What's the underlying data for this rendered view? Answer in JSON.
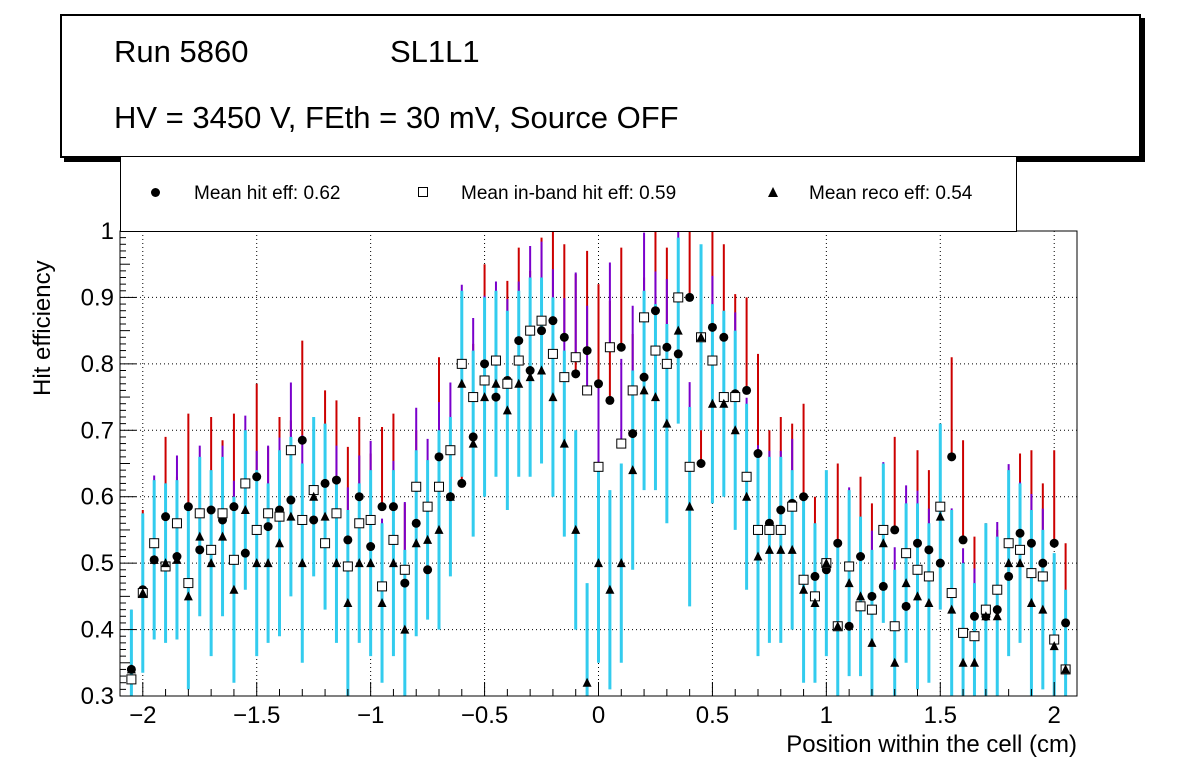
{
  "header": {
    "run": "Run 5860",
    "layer": "SL1L1",
    "conditions": "HV = 3450 V, FEth = 30 mV, Source OFF"
  },
  "legend": {
    "hit": "Mean hit  eff: 0.62",
    "inband": "Mean in-band hit eff: 0.59",
    "reco": "Mean reco eff: 0.54"
  },
  "colors": {
    "hit_err": "#cc0000",
    "inband_err_upper": "#7a00cc",
    "reco_err": "#33ccee",
    "marker": "#000000"
  },
  "chart_data": {
    "type": "scatter",
    "xlabel": "Position within the cell (cm)",
    "ylabel": "Hit efficiency",
    "xlim": [
      -2.1,
      2.1
    ],
    "ylim": [
      0.3,
      1.0
    ],
    "grid": true,
    "x_ticks": [
      -2,
      -1.5,
      -1,
      -0.5,
      0,
      0.5,
      1,
      1.5,
      2
    ],
    "x_tick_labels": [
      "−2",
      "−1.5",
      "−1",
      "−0.5",
      "0",
      "0.5",
      "1",
      "1.5",
      "2"
    ],
    "y_ticks": [
      0.3,
      0.4,
      0.5,
      0.6,
      0.7,
      0.8,
      0.9,
      1.0
    ],
    "y_tick_labels": [
      "0.3",
      "0.4",
      "0.5",
      "0.6",
      "0.7",
      "0.8",
      "0.9",
      "1"
    ],
    "series": [
      {
        "name": "Mean hit eff",
        "marker": "circle",
        "x": [
          -2.05,
          -2.0,
          -1.95,
          -1.9,
          -1.85,
          -1.8,
          -1.75,
          -1.7,
          -1.65,
          -1.6,
          -1.55,
          -1.5,
          -1.45,
          -1.4,
          -1.35,
          -1.3,
          -1.25,
          -1.2,
          -1.15,
          -1.1,
          -1.05,
          -1.0,
          -0.95,
          -0.9,
          -0.85,
          -0.8,
          -0.75,
          -0.7,
          -0.65,
          -0.6,
          -0.55,
          -0.5,
          -0.45,
          -0.4,
          -0.35,
          -0.3,
          -0.25,
          -0.2,
          -0.15,
          -0.1,
          -0.05,
          0.0,
          0.05,
          0.1,
          0.15,
          0.2,
          0.25,
          0.3,
          0.35,
          0.4,
          0.45,
          0.5,
          0.55,
          0.6,
          0.65,
          0.7,
          0.75,
          0.8,
          0.85,
          0.9,
          0.95,
          1.0,
          1.05,
          1.1,
          1.15,
          1.2,
          1.25,
          1.3,
          1.35,
          1.4,
          1.45,
          1.5,
          1.55,
          1.6,
          1.65,
          1.7,
          1.75,
          1.8,
          1.85,
          1.9,
          1.95,
          2.0,
          2.05
        ],
        "y": [
          0.34,
          0.46,
          0.505,
          0.57,
          0.51,
          0.585,
          0.52,
          0.58,
          0.565,
          0.585,
          0.515,
          0.63,
          0.555,
          0.58,
          0.595,
          0.685,
          0.565,
          0.62,
          0.625,
          0.535,
          0.6,
          0.525,
          0.585,
          0.585,
          0.47,
          0.56,
          0.49,
          0.66,
          0.6,
          0.62,
          0.69,
          0.8,
          0.75,
          0.775,
          0.835,
          0.79,
          0.85,
          0.865,
          0.84,
          0.785,
          0.82,
          0.77,
          0.745,
          0.825,
          0.695,
          0.78,
          0.88,
          0.825,
          0.815,
          0.9,
          0.65,
          0.855,
          0.84,
          0.755,
          0.76,
          0.665,
          0.56,
          0.58,
          0.59,
          0.6,
          0.48,
          0.49,
          0.53,
          0.405,
          0.51,
          0.45,
          0.465,
          0.55,
          0.435,
          0.53,
          0.52,
          0.5,
          0.66,
          0.535,
          0.42,
          0.42,
          0.43,
          0.48,
          0.545,
          0.53,
          0.5,
          0.53,
          0.41
        ],
        "yerr_up": [
          0.09,
          0.12,
          0.12,
          0.12,
          0.12,
          0.14,
          0.12,
          0.14,
          0.12,
          0.14,
          0.12,
          0.14,
          0.12,
          0.14,
          0.12,
          0.15,
          0.12,
          0.14,
          0.12,
          0.14,
          0.12,
          0.14,
          0.12,
          0.14,
          0.12,
          0.14,
          0.12,
          0.15,
          0.12,
          0.14,
          0.14,
          0.15,
          0.14,
          0.15,
          0.14,
          0.15,
          0.14,
          0.15,
          0.14,
          0.15,
          0.15,
          0.15,
          0.15,
          0.15,
          0.15,
          0.15,
          0.14,
          0.15,
          0.14,
          0.15,
          0.14,
          0.15,
          0.14,
          0.15,
          0.14,
          0.15,
          0.14,
          0.14,
          0.12,
          0.14,
          0.12,
          0.14,
          0.12,
          0.14,
          0.12,
          0.14,
          0.12,
          0.14,
          0.12,
          0.14,
          0.12,
          0.14,
          0.15,
          0.15,
          0.12,
          0.14,
          0.12,
          0.14,
          0.12,
          0.14,
          0.12,
          0.14,
          0.12
        ]
      },
      {
        "name": "Mean in-band hit eff",
        "marker": "open-square",
        "x": [
          -2.05,
          -2.0,
          -1.95,
          -1.9,
          -1.85,
          -1.8,
          -1.75,
          -1.7,
          -1.65,
          -1.6,
          -1.55,
          -1.5,
          -1.45,
          -1.4,
          -1.35,
          -1.3,
          -1.25,
          -1.2,
          -1.15,
          -1.1,
          -1.05,
          -1.0,
          -0.95,
          -0.9,
          -0.85,
          -0.8,
          -0.75,
          -0.7,
          -0.65,
          -0.6,
          -0.55,
          -0.5,
          -0.45,
          -0.4,
          -0.35,
          -0.3,
          -0.25,
          -0.2,
          -0.15,
          -0.1,
          -0.05,
          0.0,
          0.05,
          0.1,
          0.15,
          0.2,
          0.25,
          0.3,
          0.35,
          0.4,
          0.45,
          0.5,
          0.55,
          0.6,
          0.65,
          0.7,
          0.75,
          0.8,
          0.85,
          0.9,
          0.95,
          1.0,
          1.05,
          1.1,
          1.15,
          1.2,
          1.25,
          1.3,
          1.35,
          1.4,
          1.45,
          1.5,
          1.55,
          1.6,
          1.65,
          1.7,
          1.75,
          1.8,
          1.85,
          1.9,
          1.95,
          2.0,
          2.05
        ],
        "y": [
          0.325,
          0.455,
          0.53,
          0.495,
          0.56,
          0.47,
          0.575,
          0.52,
          0.575,
          0.505,
          0.62,
          0.55,
          0.575,
          0.57,
          0.67,
          0.565,
          0.61,
          0.53,
          0.575,
          0.495,
          0.56,
          0.565,
          0.465,
          0.535,
          0.49,
          0.615,
          0.585,
          0.615,
          0.67,
          0.8,
          0.75,
          0.775,
          0.805,
          0.77,
          0.805,
          0.85,
          0.865,
          0.815,
          0.78,
          0.81,
          0.76,
          0.645,
          0.825,
          0.68,
          0.76,
          0.87,
          0.82,
          0.8,
          0.9,
          0.645,
          0.84,
          0.805,
          0.75,
          0.75,
          0.63,
          0.55,
          0.55,
          0.55,
          0.585,
          0.475,
          0.45,
          0.5,
          0.405,
          0.495,
          0.435,
          0.43,
          0.55,
          0.405,
          0.515,
          0.49,
          0.48,
          0.585,
          0.455,
          0.395,
          0.39,
          0.43,
          0.46,
          0.53,
          0.52,
          0.485,
          0.48,
          0.385,
          0.34
        ],
        "yerr_up": [
          0.09,
          0.12,
          0.12,
          0.12,
          0.12,
          0.14,
          0.12,
          0.14,
          0.12,
          0.14,
          0.12,
          0.14,
          0.12,
          0.14,
          0.12,
          0.15,
          0.12,
          0.14,
          0.12,
          0.14,
          0.12,
          0.14,
          0.12,
          0.14,
          0.12,
          0.14,
          0.12,
          0.15,
          0.12,
          0.14,
          0.14,
          0.15,
          0.14,
          0.15,
          0.14,
          0.15,
          0.14,
          0.15,
          0.14,
          0.15,
          0.15,
          0.15,
          0.15,
          0.15,
          0.15,
          0.15,
          0.14,
          0.15,
          0.14,
          0.15,
          0.14,
          0.15,
          0.14,
          0.15,
          0.14,
          0.15,
          0.14,
          0.14,
          0.12,
          0.14,
          0.12,
          0.14,
          0.12,
          0.14,
          0.12,
          0.14,
          0.12,
          0.14,
          0.12,
          0.14,
          0.12,
          0.14,
          0.15,
          0.15,
          0.12,
          0.14,
          0.12,
          0.14,
          0.12,
          0.14,
          0.12,
          0.14,
          0.12
        ]
      },
      {
        "name": "Mean reco eff",
        "marker": "triangle",
        "x": [
          -2.05,
          -2.0,
          -1.95,
          -1.9,
          -1.85,
          -1.8,
          -1.75,
          -1.7,
          -1.65,
          -1.6,
          -1.55,
          -1.5,
          -1.45,
          -1.4,
          -1.35,
          -1.3,
          -1.25,
          -1.2,
          -1.15,
          -1.1,
          -1.05,
          -1.0,
          -0.95,
          -0.9,
          -0.85,
          -0.8,
          -0.75,
          -0.7,
          -0.65,
          -0.6,
          -0.55,
          -0.5,
          -0.45,
          -0.4,
          -0.35,
          -0.3,
          -0.25,
          -0.2,
          -0.15,
          -0.1,
          -0.05,
          0.0,
          0.05,
          0.1,
          0.15,
          0.2,
          0.25,
          0.3,
          0.35,
          0.4,
          0.45,
          0.5,
          0.55,
          0.6,
          0.65,
          0.7,
          0.75,
          0.8,
          0.85,
          0.9,
          0.95,
          1.0,
          1.05,
          1.1,
          1.15,
          1.2,
          1.25,
          1.3,
          1.35,
          1.4,
          1.45,
          1.5,
          1.55,
          1.6,
          1.65,
          1.7,
          1.75,
          1.8,
          1.85,
          1.9,
          1.95,
          2.0,
          2.05
        ],
        "y": [
          0.34,
          0.455,
          0.505,
          0.5,
          0.505,
          0.45,
          0.54,
          0.5,
          0.54,
          0.46,
          0.58,
          0.5,
          0.5,
          0.53,
          0.57,
          0.5,
          0.6,
          0.57,
          0.5,
          0.44,
          0.5,
          0.5,
          0.44,
          0.5,
          0.4,
          0.53,
          0.535,
          0.55,
          0.6,
          0.77,
          0.68,
          0.75,
          0.77,
          0.73,
          0.77,
          0.78,
          0.79,
          0.75,
          0.68,
          0.55,
          0.32,
          0.5,
          0.46,
          0.5,
          0.64,
          0.76,
          0.75,
          0.71,
          0.85,
          0.585,
          0.84,
          0.74,
          0.74,
          0.7,
          0.6,
          0.51,
          0.52,
          0.52,
          0.52,
          0.46,
          0.44,
          0.5,
          0.405,
          0.47,
          0.45,
          0.38,
          0.53,
          0.35,
          0.47,
          0.45,
          0.44,
          0.57,
          0.43,
          0.35,
          0.35,
          0.42,
          0.42,
          0.5,
          0.5,
          0.44,
          0.43,
          0.375,
          0.34
        ],
        "yerr_up": [
          0.09,
          0.12,
          0.12,
          0.12,
          0.12,
          0.14,
          0.12,
          0.14,
          0.12,
          0.14,
          0.12,
          0.14,
          0.12,
          0.14,
          0.12,
          0.15,
          0.12,
          0.14,
          0.12,
          0.14,
          0.12,
          0.14,
          0.12,
          0.14,
          0.12,
          0.14,
          0.12,
          0.15,
          0.12,
          0.14,
          0.14,
          0.15,
          0.14,
          0.15,
          0.14,
          0.15,
          0.14,
          0.15,
          0.14,
          0.15,
          0.15,
          0.15,
          0.15,
          0.15,
          0.15,
          0.15,
          0.14,
          0.15,
          0.14,
          0.15,
          0.14,
          0.15,
          0.14,
          0.15,
          0.14,
          0.15,
          0.14,
          0.14,
          0.12,
          0.14,
          0.12,
          0.14,
          0.12,
          0.14,
          0.12,
          0.14,
          0.12,
          0.14,
          0.12,
          0.14,
          0.12,
          0.14,
          0.15,
          0.15,
          0.12,
          0.14,
          0.12,
          0.14,
          0.12,
          0.14,
          0.12,
          0.14,
          0.12
        ],
        "yerr_down": [
          0.09,
          0.12,
          0.12,
          0.12,
          0.12,
          0.14,
          0.12,
          0.14,
          0.12,
          0.14,
          0.12,
          0.14,
          0.12,
          0.14,
          0.12,
          0.15,
          0.12,
          0.14,
          0.12,
          0.14,
          0.12,
          0.14,
          0.12,
          0.14,
          0.12,
          0.14,
          0.12,
          0.15,
          0.12,
          0.14,
          0.14,
          0.15,
          0.14,
          0.15,
          0.14,
          0.15,
          0.14,
          0.15,
          0.14,
          0.15,
          0.15,
          0.15,
          0.15,
          0.15,
          0.15,
          0.15,
          0.14,
          0.15,
          0.14,
          0.15,
          0.14,
          0.15,
          0.14,
          0.15,
          0.14,
          0.15,
          0.14,
          0.14,
          0.12,
          0.14,
          0.12,
          0.14,
          0.12,
          0.14,
          0.12,
          0.14,
          0.12,
          0.14,
          0.12,
          0.14,
          0.12,
          0.14,
          0.15,
          0.15,
          0.12,
          0.14,
          0.12,
          0.14,
          0.12,
          0.14,
          0.12,
          0.14,
          0.12
        ]
      }
    ]
  }
}
